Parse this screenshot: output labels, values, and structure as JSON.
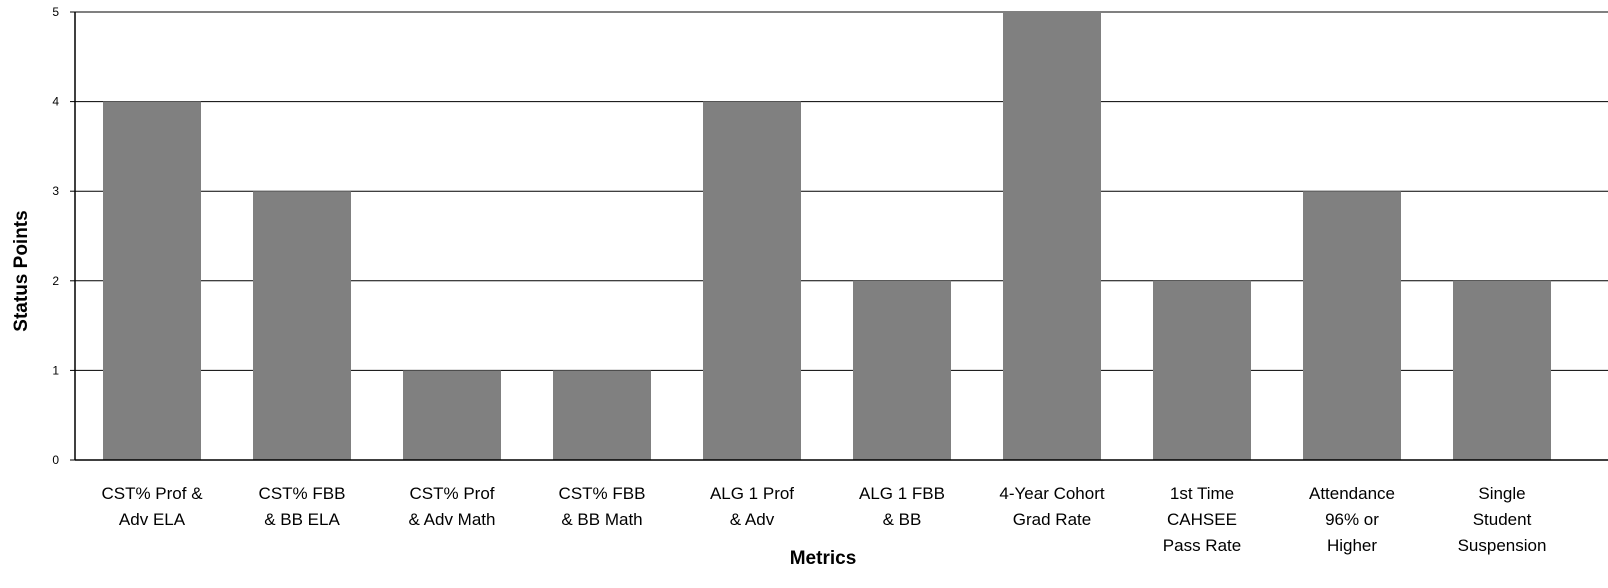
{
  "chart_data": {
    "type": "bar",
    "title": "",
    "xlabel": "Metrics",
    "ylabel": "Status Points",
    "ylim": [
      0,
      5
    ],
    "yticks": [
      0,
      1,
      2,
      3,
      4,
      5
    ],
    "grid": true,
    "legend": "none",
    "bar_color": "#808080",
    "categories": [
      [
        "CST% Prof &",
        "Adv ELA"
      ],
      [
        "CST% FBB",
        "& BB ELA"
      ],
      [
        "CST% Prof",
        "& Adv Math"
      ],
      [
        "CST% FBB",
        "& BB Math"
      ],
      [
        "ALG 1 Prof",
        "& Adv"
      ],
      [
        "ALG 1 FBB",
        "& BB"
      ],
      [
        "4-Year Cohort",
        "Grad Rate"
      ],
      [
        "1st Time",
        "CAHSEE",
        "Pass Rate"
      ],
      [
        "Attendance",
        "96% or",
        "Higher"
      ],
      [
        "Single",
        "Student",
        "Suspension"
      ]
    ],
    "values": [
      4,
      3,
      1,
      1,
      4,
      2,
      5,
      2,
      3,
      2
    ]
  }
}
